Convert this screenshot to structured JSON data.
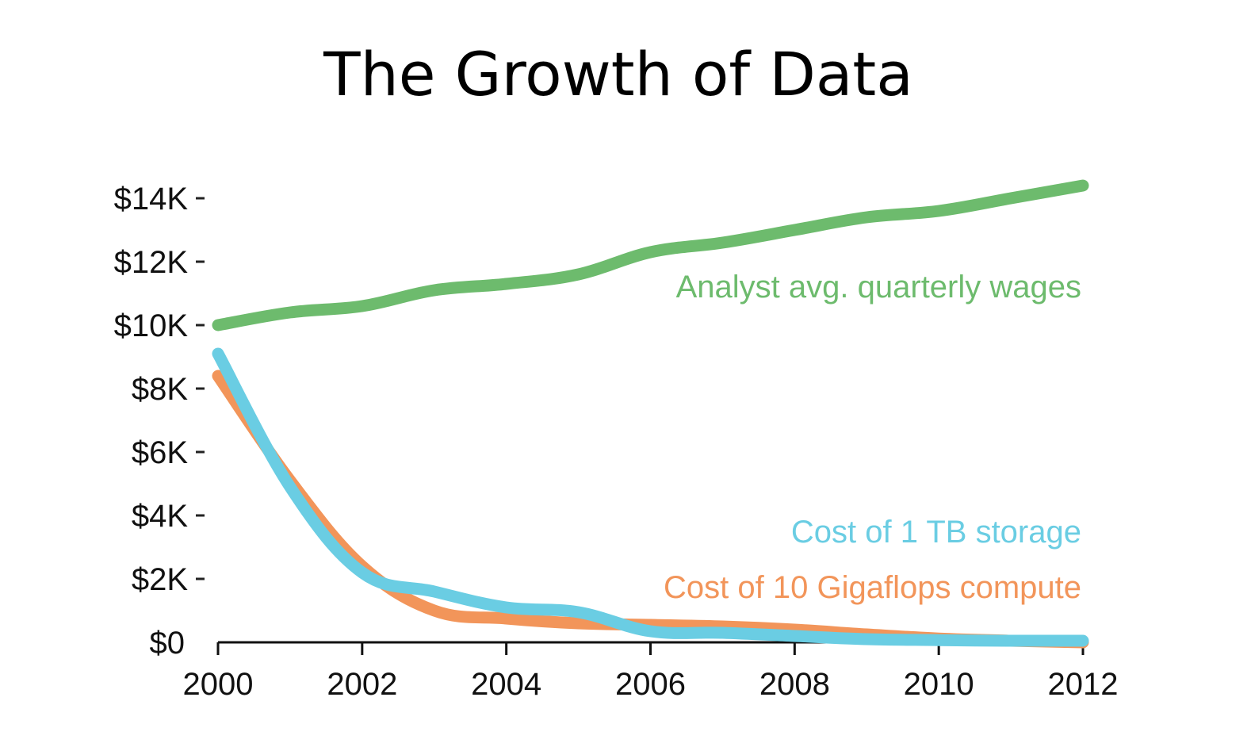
{
  "chart_data": {
    "type": "line",
    "title": "The Growth of Data",
    "xlabel": "",
    "ylabel": "",
    "xlim": [
      2000,
      2012
    ],
    "ylim": [
      0,
      14500
    ],
    "grid": false,
    "legend": "inline-labels-right",
    "x_ticks": [
      2000,
      2002,
      2004,
      2006,
      2008,
      2010,
      2012
    ],
    "x_tick_labels": [
      "2000",
      "2002",
      "2004",
      "2006",
      "2008",
      "2010",
      "2012"
    ],
    "y_ticks": [
      0,
      2000,
      4000,
      6000,
      8000,
      10000,
      12000,
      14000
    ],
    "y_tick_labels": [
      "$0",
      "$2K",
      "$4K",
      "$6K",
      "$8K",
      "$10K",
      "$12K",
      "$14K"
    ],
    "series": [
      {
        "name": "Analyst avg. quarterly wages",
        "color": "#6dbb6d",
        "x": [
          2000,
          2001,
          2002,
          2003,
          2004,
          2005,
          2006,
          2007,
          2008,
          2009,
          2010,
          2011,
          2012
        ],
        "values": [
          10000,
          10400,
          10600,
          11100,
          11300,
          11600,
          12300,
          12600,
          13000,
          13400,
          13600,
          14000,
          14400
        ]
      },
      {
        "name": "Cost of 1 TB storage",
        "color": "#6acde3",
        "x": [
          2000,
          2001,
          2002,
          2003,
          2004,
          2005,
          2006,
          2007,
          2008,
          2009,
          2010,
          2011,
          2012
        ],
        "values": [
          9100,
          4900,
          2200,
          1600,
          1100,
          950,
          350,
          300,
          200,
          100,
          70,
          50,
          50
        ]
      },
      {
        "name": "Cost of 10 Gigaflops compute",
        "color": "#f2955a",
        "x": [
          2000,
          2001,
          2002,
          2003,
          2004,
          2005,
          2006,
          2007,
          2008,
          2009,
          2010,
          2011,
          2012
        ],
        "values": [
          8400,
          5100,
          2400,
          1000,
          750,
          600,
          550,
          500,
          400,
          250,
          120,
          50,
          0
        ]
      }
    ]
  }
}
